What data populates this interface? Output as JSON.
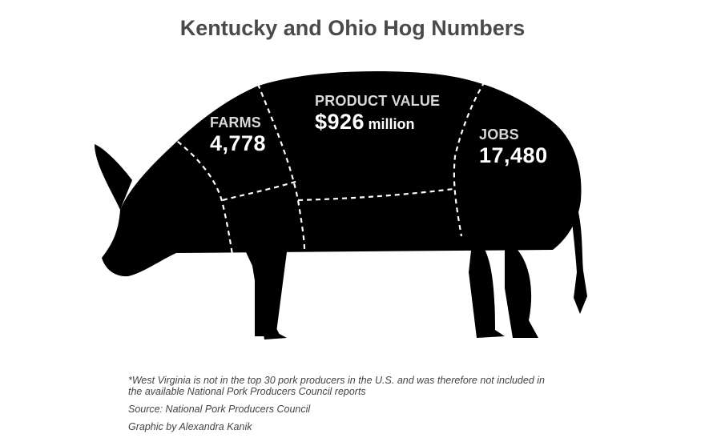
{
  "title": "Kentucky and Ohio Hog Numbers",
  "sections": {
    "farms": {
      "label": "FARMS",
      "value": "4,778"
    },
    "product_value": {
      "label": "PRODUCT VALUE",
      "value": "$926",
      "unit": "million"
    },
    "jobs": {
      "label": "JOBS",
      "value": "17,480"
    }
  },
  "notes": {
    "footnote_line1": "*West Virginia is not in the top 30 pork producers in the U.S. and was therefore not included in",
    "footnote_line2": "the available National Pork Producers Council reports",
    "source": "Source: National Pork Producers Council",
    "credit": "Graphic by Alexandra Kanik"
  }
}
